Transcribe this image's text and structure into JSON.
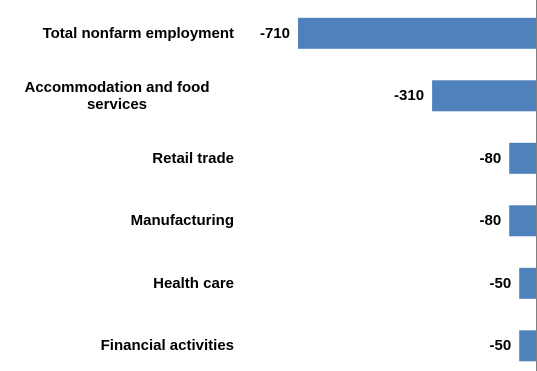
{
  "chart_data": {
    "type": "bar",
    "orientation": "horizontal",
    "categories": [
      "Total nonfarm employment",
      "Accommodation and food services",
      "Retail trade",
      "Manufacturing",
      "Health care",
      "Financial activities"
    ],
    "values": [
      -710,
      -310,
      -80,
      -80,
      -50,
      -50
    ],
    "data_labels": [
      "-710",
      "-310",
      "-80",
      "-80",
      "-50",
      "-50"
    ],
    "title": "",
    "xlabel": "",
    "ylabel": "",
    "xlim": [
      -710,
      0
    ],
    "grid": false,
    "legend": "none",
    "bar_color": "#4f81bd",
    "axis_color": "#808080"
  }
}
